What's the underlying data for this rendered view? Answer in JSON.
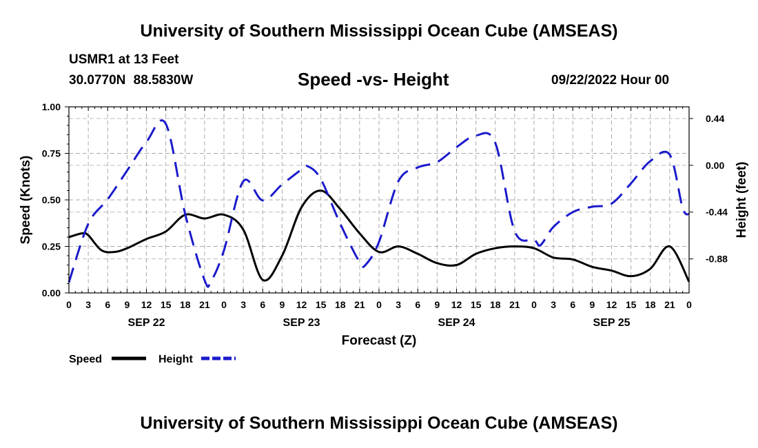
{
  "header": {
    "title": "University of Southern Mississippi Ocean Cube (AMSEAS)",
    "station": "USMR1 at 13 Feet",
    "coords": "30.0770N  88.5830W",
    "chart_title": "Speed -vs- Height",
    "date": "09/22/2022 Hour 00"
  },
  "footer": {
    "title": "University of Southern Mississippi Ocean Cube (AMSEAS)"
  },
  "colors": {
    "speed": "#000000",
    "height": "#1a1acc",
    "grid": "#aaaaaa"
  },
  "chart_data": {
    "type": "line",
    "title": "Speed -vs- Height",
    "xlabel": "Forecast (Z)",
    "ylabel": "Speed (Knots)",
    "y2label": "Height (feet)",
    "xlim": [
      0,
      96
    ],
    "ylim": [
      0,
      1
    ],
    "y2lim": [
      -1.2,
      0.55
    ],
    "x_tick_labels": [
      "0",
      "3",
      "6",
      "9",
      "12",
      "15",
      "18",
      "21",
      "0",
      "3",
      "6",
      "9",
      "12",
      "15",
      "18",
      "21",
      "0",
      "3",
      "6",
      "9",
      "12",
      "15",
      "18",
      "21",
      "0",
      "3",
      "6",
      "9",
      "12",
      "15",
      "18",
      "21",
      "0"
    ],
    "y_ticks": [
      "0.00",
      "0.25",
      "0.50",
      "0.75",
      "1.00"
    ],
    "y2_ticks": [
      "0.44",
      "0.00",
      "-0.44",
      "-0.88"
    ],
    "day_labels": [
      "SEP 22",
      "SEP 23",
      "SEP 24",
      "SEP 25"
    ],
    "legend": [
      "Speed",
      "Height"
    ],
    "series": [
      {
        "name": "Speed",
        "axis": "left",
        "style": "solid",
        "x": [
          0,
          2,
          3,
          5,
          7,
          9,
          12,
          15,
          18,
          21,
          24,
          27,
          30,
          33,
          36,
          39,
          42,
          45,
          48,
          51,
          54,
          57,
          60,
          63,
          66,
          69,
          72,
          75,
          78,
          81,
          84,
          87,
          90,
          93,
          96
        ],
        "values": [
          0.3,
          0.32,
          0.31,
          0.23,
          0.22,
          0.24,
          0.29,
          0.33,
          0.42,
          0.4,
          0.42,
          0.34,
          0.07,
          0.2,
          0.46,
          0.55,
          0.45,
          0.32,
          0.22,
          0.25,
          0.21,
          0.16,
          0.15,
          0.21,
          0.24,
          0.25,
          0.24,
          0.19,
          0.18,
          0.14,
          0.12,
          0.09,
          0.13,
          0.25,
          0.06
        ]
      },
      {
        "name": "Height",
        "axis": "right",
        "style": "dashed",
        "x": [
          0,
          3,
          6,
          9,
          12,
          15,
          18,
          21,
          22,
          24,
          27,
          30,
          33,
          36,
          37,
          39,
          42,
          45,
          46,
          48,
          51,
          54,
          57,
          60,
          63,
          66,
          69,
          72,
          73,
          75,
          78,
          81,
          84,
          87,
          90,
          93,
          95,
          96
        ],
        "values": [
          -1.1,
          -0.55,
          -0.32,
          -0.05,
          0.22,
          0.39,
          -0.46,
          -1.08,
          -1.09,
          -0.8,
          -0.15,
          -0.33,
          -0.18,
          -0.04,
          -0.01,
          -0.13,
          -0.55,
          -0.91,
          -0.93,
          -0.72,
          -0.15,
          -0.02,
          0.03,
          0.17,
          0.28,
          0.21,
          -0.62,
          -0.7,
          -0.75,
          -0.58,
          -0.44,
          -0.39,
          -0.36,
          -0.17,
          0.04,
          0.1,
          -0.4,
          -0.46
        ]
      }
    ]
  }
}
